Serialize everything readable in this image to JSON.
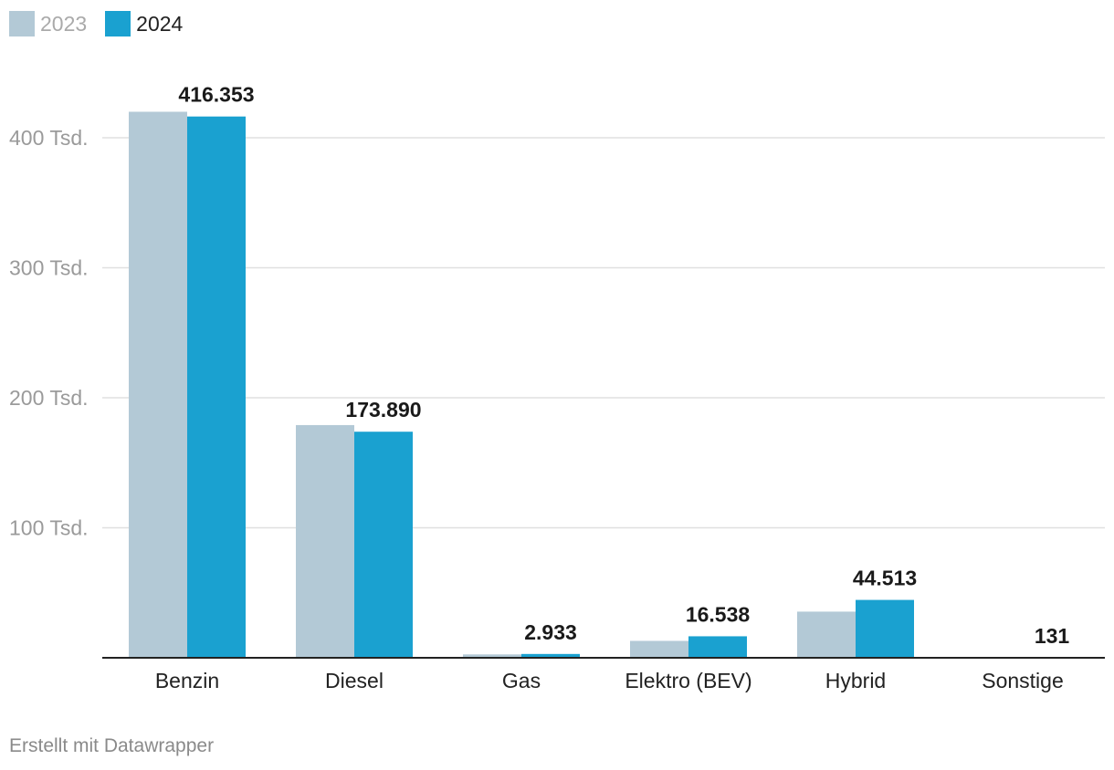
{
  "chart_data": {
    "type": "bar",
    "title": "",
    "xlabel": "",
    "ylabel": "",
    "categories": [
      "Benzin",
      "Diesel",
      "Gas",
      "Elektro (BEV)",
      "Hybrid",
      "Sonstige"
    ],
    "series": [
      {
        "name": "2023",
        "color": "#b3c9d6",
        "values": [
          420000,
          179000,
          2600,
          13000,
          35500,
          0
        ]
      },
      {
        "name": "2024",
        "color": "#1aa1d0",
        "values": [
          416353,
          173890,
          2933,
          16538,
          44513,
          131
        ]
      }
    ],
    "value_labels": [
      "416.353",
      "173.890",
      "2.933",
      "16.538",
      "44.513",
      "131"
    ],
    "ylim": [
      0,
      400000
    ],
    "yticks": [
      100000,
      200000,
      300000,
      400000
    ],
    "ytick_labels": [
      "100 Tsd.",
      "200 Tsd.",
      "300 Tsd.",
      "400 Tsd."
    ],
    "grid": true,
    "legend_position": "top-left",
    "gridline_color": "#e0e0e0",
    "axis_color": "#222222"
  },
  "legend": {
    "items": [
      {
        "label": "2023",
        "color": "#b3c9d6",
        "text_color": "#aaaaaa"
      },
      {
        "label": "2024",
        "color": "#1aa1d0",
        "text_color": "#222222"
      }
    ]
  },
  "credit": "Erstellt mit Datawrapper"
}
